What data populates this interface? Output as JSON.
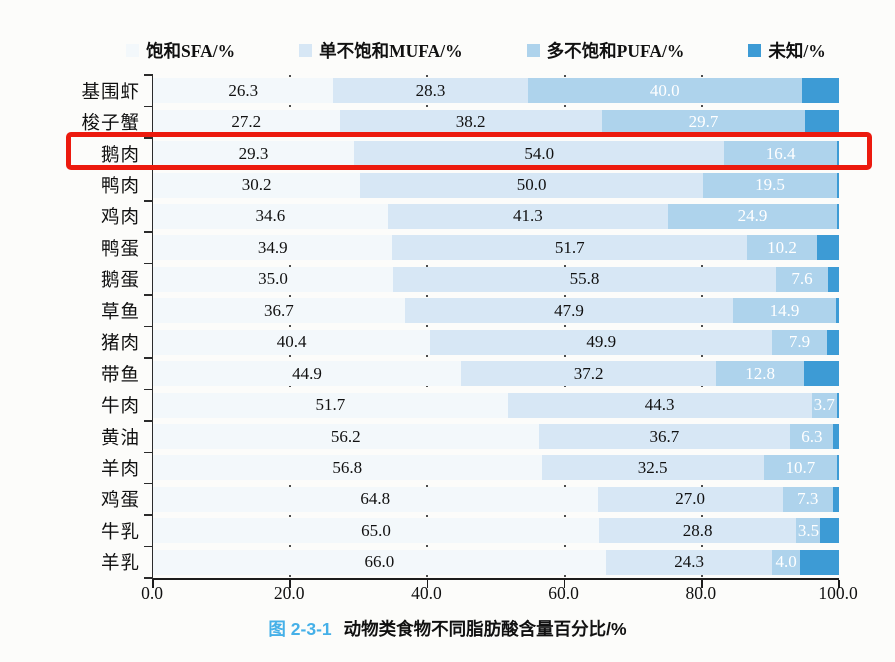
{
  "colors": {
    "sfa": "#f3f8fb",
    "mufa": "#d7e7f5",
    "pufa": "#aed3ec",
    "unknown": "#3d9bd5",
    "label_dark": "#111111",
    "label_light": "#ffffff",
    "highlight_red": "#ec1a0e",
    "caption_blue": "#45b0e8",
    "axis": "#1c1c1c"
  },
  "legend": {
    "items": [
      {
        "key": "sfa",
        "label": "饱和SFA/%"
      },
      {
        "key": "mufa",
        "label": "单不饱和MUFA/%"
      },
      {
        "key": "pufa",
        "label": "多不饱和PUFA/%"
      },
      {
        "key": "unknown",
        "label": "未知/%"
      }
    ]
  },
  "caption": {
    "figure_no": "图 2-3-1",
    "text": "动物类食物不同脂肪酸含量百分比/%"
  },
  "highlight": {
    "category": "鹅肉"
  },
  "chart_data": {
    "type": "bar",
    "orientation": "horizontal",
    "stacked": true,
    "title": "图 2-3-1 动物类食物不同脂肪酸含量百分比/%",
    "xlim": [
      0,
      100
    ],
    "x_ticks": [
      "0.0",
      "20.0",
      "40.0",
      "60.0",
      "80.0",
      "100.0"
    ],
    "x_tick_values": [
      0,
      20,
      40,
      60,
      80,
      100
    ],
    "legend_position": "top",
    "gridlines_at": [
      20,
      40,
      60,
      80
    ],
    "categories": [
      "基围虾",
      "梭子蟹",
      "鹅肉",
      "鸭肉",
      "鸡肉",
      "鸭蛋",
      "鹅蛋",
      "草鱼",
      "猪肉",
      "带鱼",
      "牛肉",
      "黄油",
      "羊肉",
      "鸡蛋",
      "牛乳",
      "羊乳"
    ],
    "series": [
      {
        "name": "饱和SFA/%",
        "labeled": true,
        "values": [
          26.3,
          27.2,
          29.3,
          30.2,
          34.6,
          34.9,
          35.0,
          36.7,
          40.4,
          44.9,
          51.7,
          56.2,
          56.8,
          64.8,
          65.0,
          66.0
        ]
      },
      {
        "name": "单不饱和MUFA/%",
        "labeled": true,
        "values": [
          28.3,
          38.2,
          54.0,
          50.0,
          41.3,
          51.7,
          55.8,
          47.9,
          49.9,
          37.2,
          44.3,
          36.7,
          32.5,
          27.0,
          28.8,
          24.3
        ]
      },
      {
        "name": "多不饱和PUFA/%",
        "labeled": true,
        "values": [
          40.0,
          29.7,
          16.4,
          19.5,
          24.9,
          10.2,
          7.6,
          14.9,
          7.9,
          12.8,
          3.7,
          6.3,
          10.7,
          7.3,
          3.5,
          4.0
        ]
      },
      {
        "name": "未知/%",
        "labeled": false,
        "values": [
          5.4,
          4.9,
          0.3,
          0.3,
          0.0,
          3.2,
          1.6,
          0.5,
          1.8,
          5.1,
          0.3,
          0.8,
          0.0,
          0.9,
          2.7,
          5.7
        ]
      }
    ]
  }
}
